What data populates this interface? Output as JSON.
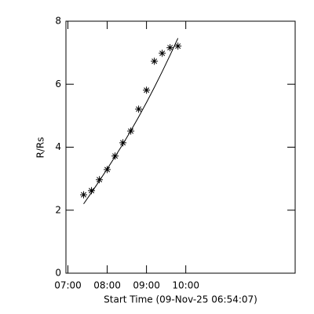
{
  "chart_data": {
    "type": "scatter",
    "xlabel": "Start Time (09-Nov-25 06:54:07)",
    "ylabel": "R/Rs",
    "x": [
      444,
      456,
      468,
      480,
      492,
      504,
      516,
      528,
      540,
      552,
      564,
      576,
      588
    ],
    "series": [
      {
        "style": "marker",
        "color": "#000000",
        "values": [
          2.49,
          2.62,
          2.97,
          3.29,
          3.72,
          4.14,
          4.51,
          5.21,
          5.81,
          6.73,
          6.98,
          7.16,
          7.21
        ]
      },
      {
        "style": "line",
        "color": "#000000",
        "values": [
          2.2,
          2.56,
          2.93,
          3.31,
          3.7,
          4.1,
          4.52,
          4.96,
          5.42,
          5.9,
          6.4,
          6.92,
          7.46
        ]
      }
    ],
    "xlim": [
      417,
      767
    ],
    "xticks": [
      {
        "value": 420,
        "label": "07:00"
      },
      {
        "value": 480,
        "label": "08:00"
      },
      {
        "value": 540,
        "label": "09:00"
      },
      {
        "value": 600,
        "label": "10:00"
      }
    ],
    "ylim": [
      0,
      8
    ],
    "yticks": [
      0,
      2,
      4,
      6,
      8
    ]
  }
}
